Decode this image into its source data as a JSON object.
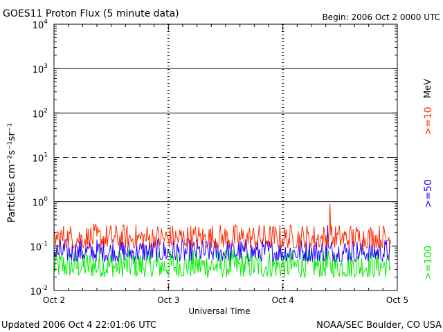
{
  "chart_data": {
    "type": "line",
    "title": "GOES11 Proton Flux (5 minute data)",
    "begin_label": "Begin: 2006 Oct 2 0000 UTC",
    "xlabel": "Universal Time",
    "ylabel": "Particles cm⁻²s⁻¹sr⁻¹",
    "y_scale": "log",
    "ylim": [
      0.01,
      10000
    ],
    "y_ticks": [
      {
        "base": "10",
        "exp": "4",
        "value": 10000
      },
      {
        "base": "10",
        "exp": "3",
        "value": 1000
      },
      {
        "base": "10",
        "exp": "2",
        "value": 100
      },
      {
        "base": "10",
        "exp": "1",
        "value": 10
      },
      {
        "base": "10",
        "exp": "0",
        "value": 1
      },
      {
        "base": "10",
        "exp": "-1",
        "value": 0.1
      },
      {
        "base": "10",
        "exp": "-2",
        "value": 0.01
      }
    ],
    "x_range_days": [
      0,
      3
    ],
    "x_ticks": [
      {
        "label": "Oct 2",
        "day": 0
      },
      {
        "label": "Oct 3",
        "day": 1
      },
      {
        "label": "Oct 4",
        "day": 2
      },
      {
        "label": "Oct 5",
        "day": 3
      }
    ],
    "data_end_day": 2.94,
    "threshold_lines": [
      {
        "value": 10,
        "style": "dashed"
      },
      {
        "value": 1,
        "style": "solid"
      },
      {
        "value": 100,
        "style": "solid"
      },
      {
        "value": 1000,
        "style": "solid"
      }
    ],
    "grid": "vertical dashed day markers",
    "legend_unit": "MeV",
    "series": [
      {
        "name": ">=10",
        "color": "#ff2a00",
        "typical_range": [
          0.09,
          0.32
        ],
        "peak": {
          "day": 2.41,
          "value": 0.9
        }
      },
      {
        "name": ">=50",
        "color": "#2200ff",
        "typical_range": [
          0.045,
          0.15
        ],
        "peak": {
          "day": 2.39,
          "value": 0.3
        }
      },
      {
        "name": ">=100",
        "color": "#00ee00",
        "typical_range": [
          0.02,
          0.085
        ],
        "peak": null
      }
    ]
  },
  "footer": {
    "updated": "Updated 2006 Oct  4 22:01:06 UTC",
    "source": "NOAA/SEC Boulder, CO USA"
  }
}
